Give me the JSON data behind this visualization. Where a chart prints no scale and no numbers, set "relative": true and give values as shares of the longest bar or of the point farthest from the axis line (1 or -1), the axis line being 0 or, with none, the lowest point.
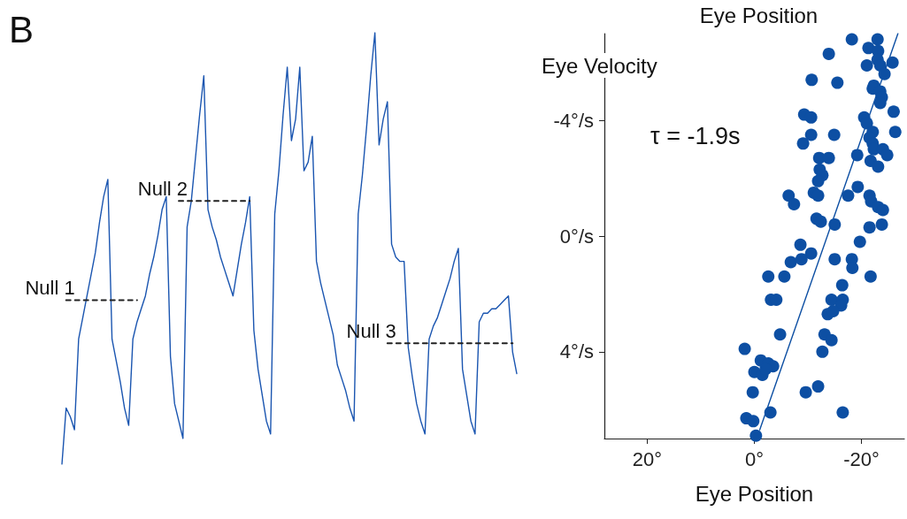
{
  "chart_data": [
    {
      "type": "line",
      "relative": true,
      "marker": "none",
      "annotations": [
        "B"
      ],
      "categories": [
        null,
        null,
        null,
        null,
        null,
        null,
        null,
        null,
        null,
        null,
        null,
        null,
        null,
        null,
        null,
        null,
        null,
        null,
        null,
        null,
        null,
        null,
        null,
        null,
        null,
        null,
        null,
        null,
        null,
        null,
        null,
        null,
        null,
        null,
        null,
        null,
        null,
        null,
        null,
        null,
        null,
        null,
        null,
        null,
        null,
        null,
        null,
        null,
        null,
        null,
        null,
        null,
        null,
        null,
        null,
        null,
        null,
        null,
        null,
        null,
        null,
        null,
        null,
        null,
        null,
        null,
        null,
        null,
        null,
        null,
        null,
        null,
        null,
        null,
        null,
        null,
        null,
        null,
        null,
        null,
        null,
        null,
        null,
        null,
        null,
        null,
        null,
        null,
        null,
        null,
        null,
        null,
        null,
        null,
        null,
        null,
        null,
        null,
        null,
        null,
        null,
        null,
        null,
        null,
        null,
        null,
        null,
        null,
        null,
        null
      ],
      "series": [
        {
          "color": "#1a55b0",
          "line_style": "solid",
          "values": [
            0,
            0.13,
            0.11,
            0.08,
            0.29,
            0.34,
            0.39,
            0.44,
            0.49,
            0.56,
            0.62,
            0.66,
            0.29,
            0.24,
            0.19,
            0.13,
            0.09,
            0.29,
            0.33,
            0.36,
            0.39,
            0.44,
            0.48,
            0.53,
            0.59,
            0.62,
            0.25,
            0.14,
            0.1,
            0.06,
            0.55,
            0.61,
            0.71,
            0.81,
            0.9,
            0.59,
            0.55,
            0.52,
            0.48,
            0.45,
            0.42,
            0.39,
            0.45,
            0.51,
            0.56,
            0.62,
            0.31,
            0.22,
            0.16,
            0.1,
            0.07,
            0.58,
            0.68,
            0.81,
            0.92,
            0.75,
            0.8,
            0.92,
            0.68,
            0.7,
            0.76,
            0.47,
            0.42,
            0.38,
            0.34,
            0.3,
            0.23,
            0.2,
            0.17,
            0.13,
            0.1,
            0.58,
            0.67,
            0.78,
            0.9,
            1.0,
            0.74,
            0.8,
            0.84,
            0.51,
            0.48,
            0.47,
            0.47,
            0.27,
            0.2,
            0.14,
            0.1,
            0.07,
            0.29,
            0.32,
            0.34,
            0.37,
            0.4,
            0.43,
            0.47,
            0.5,
            0.22,
            0.16,
            0.1,
            0.07,
            0.33,
            0.35,
            0.35,
            0.36,
            0.36,
            0.37,
            0.38,
            0.39,
            0.26,
            0.21
          ]
        },
        {
          "name": "Null 1",
          "color": "#222222",
          "line_style": "dashed",
          "values": [
            null,
            0.38,
            0.38,
            0.38,
            0.38,
            0.38,
            0.38,
            0.38,
            0.38,
            0.38,
            0.38,
            0.38,
            0.38,
            0.38,
            0.38,
            0.38,
            0.38,
            0.38,
            0.38,
            null,
            null,
            null,
            null,
            null,
            null,
            null,
            null,
            null,
            null,
            null,
            null,
            null,
            null,
            null,
            null,
            null,
            null,
            null,
            null,
            null,
            null,
            null,
            null,
            null,
            null,
            null,
            null,
            null,
            null,
            null,
            null,
            null,
            null,
            null,
            null,
            null,
            null,
            null,
            null,
            null,
            null,
            null,
            null,
            null,
            null,
            null,
            null,
            null,
            null,
            null,
            null,
            null,
            null,
            null,
            null,
            null,
            null,
            null,
            null,
            null,
            null,
            null,
            null,
            null,
            null,
            null,
            null,
            null,
            null,
            null,
            null,
            null,
            null,
            null,
            null,
            null,
            null,
            null,
            null,
            null,
            null,
            null,
            null,
            null,
            null,
            null,
            null,
            null,
            null,
            null
          ]
        },
        {
          "name": "Null 2",
          "color": "#222222",
          "line_style": "dashed",
          "values": [
            null,
            null,
            null,
            null,
            null,
            null,
            null,
            null,
            null,
            null,
            null,
            null,
            null,
            null,
            null,
            null,
            null,
            null,
            null,
            null,
            null,
            null,
            null,
            null,
            null,
            null,
            null,
            null,
            0.61,
            0.61,
            0.61,
            0.61,
            0.61,
            0.61,
            0.61,
            0.61,
            0.61,
            0.61,
            0.61,
            0.61,
            0.61,
            0.61,
            0.61,
            0.61,
            0.61,
            0.61,
            null,
            null,
            null,
            null,
            null,
            null,
            null,
            null,
            null,
            null,
            null,
            null,
            null,
            null,
            null,
            null,
            null,
            null,
            null,
            null,
            null,
            null,
            null,
            null,
            null,
            null,
            null,
            null,
            null,
            null,
            null,
            null,
            null,
            null,
            null,
            null,
            null,
            null,
            null,
            null,
            null,
            null,
            null,
            null,
            null,
            null,
            null,
            null,
            null,
            null,
            null,
            null,
            null,
            null,
            null,
            null,
            null,
            null,
            null,
            null,
            null,
            null,
            null,
            null
          ]
        },
        {
          "name": "Null 3",
          "color": "#222222",
          "line_style": "dashed",
          "values": [
            null,
            null,
            null,
            null,
            null,
            null,
            null,
            null,
            null,
            null,
            null,
            null,
            null,
            null,
            null,
            null,
            null,
            null,
            null,
            null,
            null,
            null,
            null,
            null,
            null,
            null,
            null,
            null,
            null,
            null,
            null,
            null,
            null,
            null,
            null,
            null,
            null,
            null,
            null,
            null,
            null,
            null,
            null,
            null,
            null,
            null,
            null,
            null,
            null,
            null,
            null,
            null,
            null,
            null,
            null,
            null,
            null,
            null,
            null,
            null,
            null,
            null,
            null,
            null,
            null,
            null,
            null,
            null,
            null,
            null,
            null,
            null,
            null,
            null,
            null,
            null,
            null,
            null,
            0.28,
            0.28,
            0.28,
            0.28,
            0.28,
            0.28,
            0.28,
            0.28,
            0.28,
            0.28,
            0.28,
            0.28,
            0.28,
            0.28,
            0.28,
            0.28,
            0.28,
            0.28,
            0.28,
            0.28,
            0.28,
            0.28,
            0.28,
            0.28,
            0.28,
            0.28,
            0.28,
            0.28,
            0.28,
            0.28,
            0.28,
            null
          ]
        }
      ]
    },
    {
      "type": "scatter",
      "title": "Eye Position",
      "xlabel": "Eye Position",
      "ylabel": "Eye Velocity",
      "annotations": [
        "τ = -1.9s"
      ],
      "xlim": [
        28,
        -28
      ],
      "xticks": [
        {
          "value": 20,
          "label": "20°"
        },
        {
          "value": 0,
          "label": "0°"
        },
        {
          "value": -20,
          "label": "-20°"
        }
      ],
      "ylim": [
        7,
        -7
      ],
      "yticks": [
        {
          "value": -4,
          "label": "-4°/s"
        },
        {
          "value": 0,
          "label": "0°/s"
        },
        {
          "value": 4,
          "label": "4°/s"
        }
      ],
      "marker": "circle",
      "series": [
        {
          "color": "#0d4fa3",
          "x": [
            -18.2,
            -23.0,
            -21.3,
            -13.9,
            -23.1,
            -21.0,
            -23.0,
            -25.8,
            -23.5,
            -24.3,
            -10.7,
            -15.5,
            -22.3,
            -22.1,
            -23.5,
            -23.8,
            -23.5,
            -26.0,
            -9.3,
            -10.6,
            -20.5,
            -21.0,
            -22.1,
            -26.3,
            -10.6,
            -14.9,
            -21.5,
            -22.1,
            -9.1,
            -22.3,
            -24.0,
            -24.8,
            -12.1,
            -13.9,
            -19.2,
            -21.7,
            -23.1,
            -12.2,
            -12.7,
            -11.9,
            -19.3,
            -6.4,
            -11.1,
            -11.9,
            -7.4,
            -21.5,
            -21.8,
            -23.1,
            -24.0,
            -17.5,
            -11.6,
            -12.4,
            -15.0,
            -21.5,
            -23.8,
            -8.6,
            -10.6,
            -6.8,
            -8.8,
            -15.0,
            -19.7,
            -18.2,
            -18.3,
            -2.6,
            -5.6,
            -21.7,
            -16.4,
            -3.1,
            -4.1,
            -14.4,
            -16.5,
            -16.2,
            -13.7,
            -14.7,
            -4.8,
            -13.1,
            -14.4,
            1.8,
            -12.7,
            -1.2,
            -2.6,
            -3.5,
            0.0,
            -1.5,
            -2.1,
            0.3,
            -9.6,
            -11.9,
            -3.0,
            -16.5,
            1.5,
            0.2,
            -0.3
          ],
          "values": [
            -6.8,
            -6.8,
            -6.5,
            -6.3,
            -6.4,
            -5.9,
            -6.1,
            -6.0,
            -5.9,
            -5.6,
            -5.4,
            -5.3,
            -5.2,
            -5.1,
            -5.0,
            -4.8,
            -4.6,
            -4.3,
            -4.2,
            -4.1,
            -4.1,
            -3.9,
            -3.6,
            -3.6,
            -3.5,
            -3.5,
            -3.4,
            -3.2,
            -3.2,
            -3.0,
            -3.0,
            -2.8,
            -2.7,
            -2.7,
            -2.8,
            -2.6,
            -2.4,
            -2.3,
            -2.1,
            -1.9,
            -1.7,
            -1.4,
            -1.5,
            -1.4,
            -1.1,
            -1.4,
            -1.2,
            -1.0,
            -0.9,
            -1.4,
            -0.6,
            -0.5,
            -0.4,
            -0.3,
            -0.4,
            0.3,
            0.6,
            0.9,
            0.8,
            0.8,
            0.2,
            0.8,
            1.1,
            1.4,
            1.4,
            1.4,
            1.7,
            2.2,
            2.2,
            2.2,
            2.2,
            2.4,
            2.7,
            2.6,
            3.4,
            3.4,
            3.6,
            3.9,
            4.0,
            4.3,
            4.4,
            4.5,
            4.7,
            4.8,
            4.6,
            5.4,
            5.4,
            5.2,
            6.1,
            6.1,
            6.3,
            6.4,
            6.9
          ]
        },
        {
          "type": "line",
          "color": "#0d4fa3",
          "marker": "none",
          "x": [
            -1.0,
            -26.8
          ],
          "values": [
            6.7,
            -7.0
          ]
        }
      ]
    }
  ]
}
